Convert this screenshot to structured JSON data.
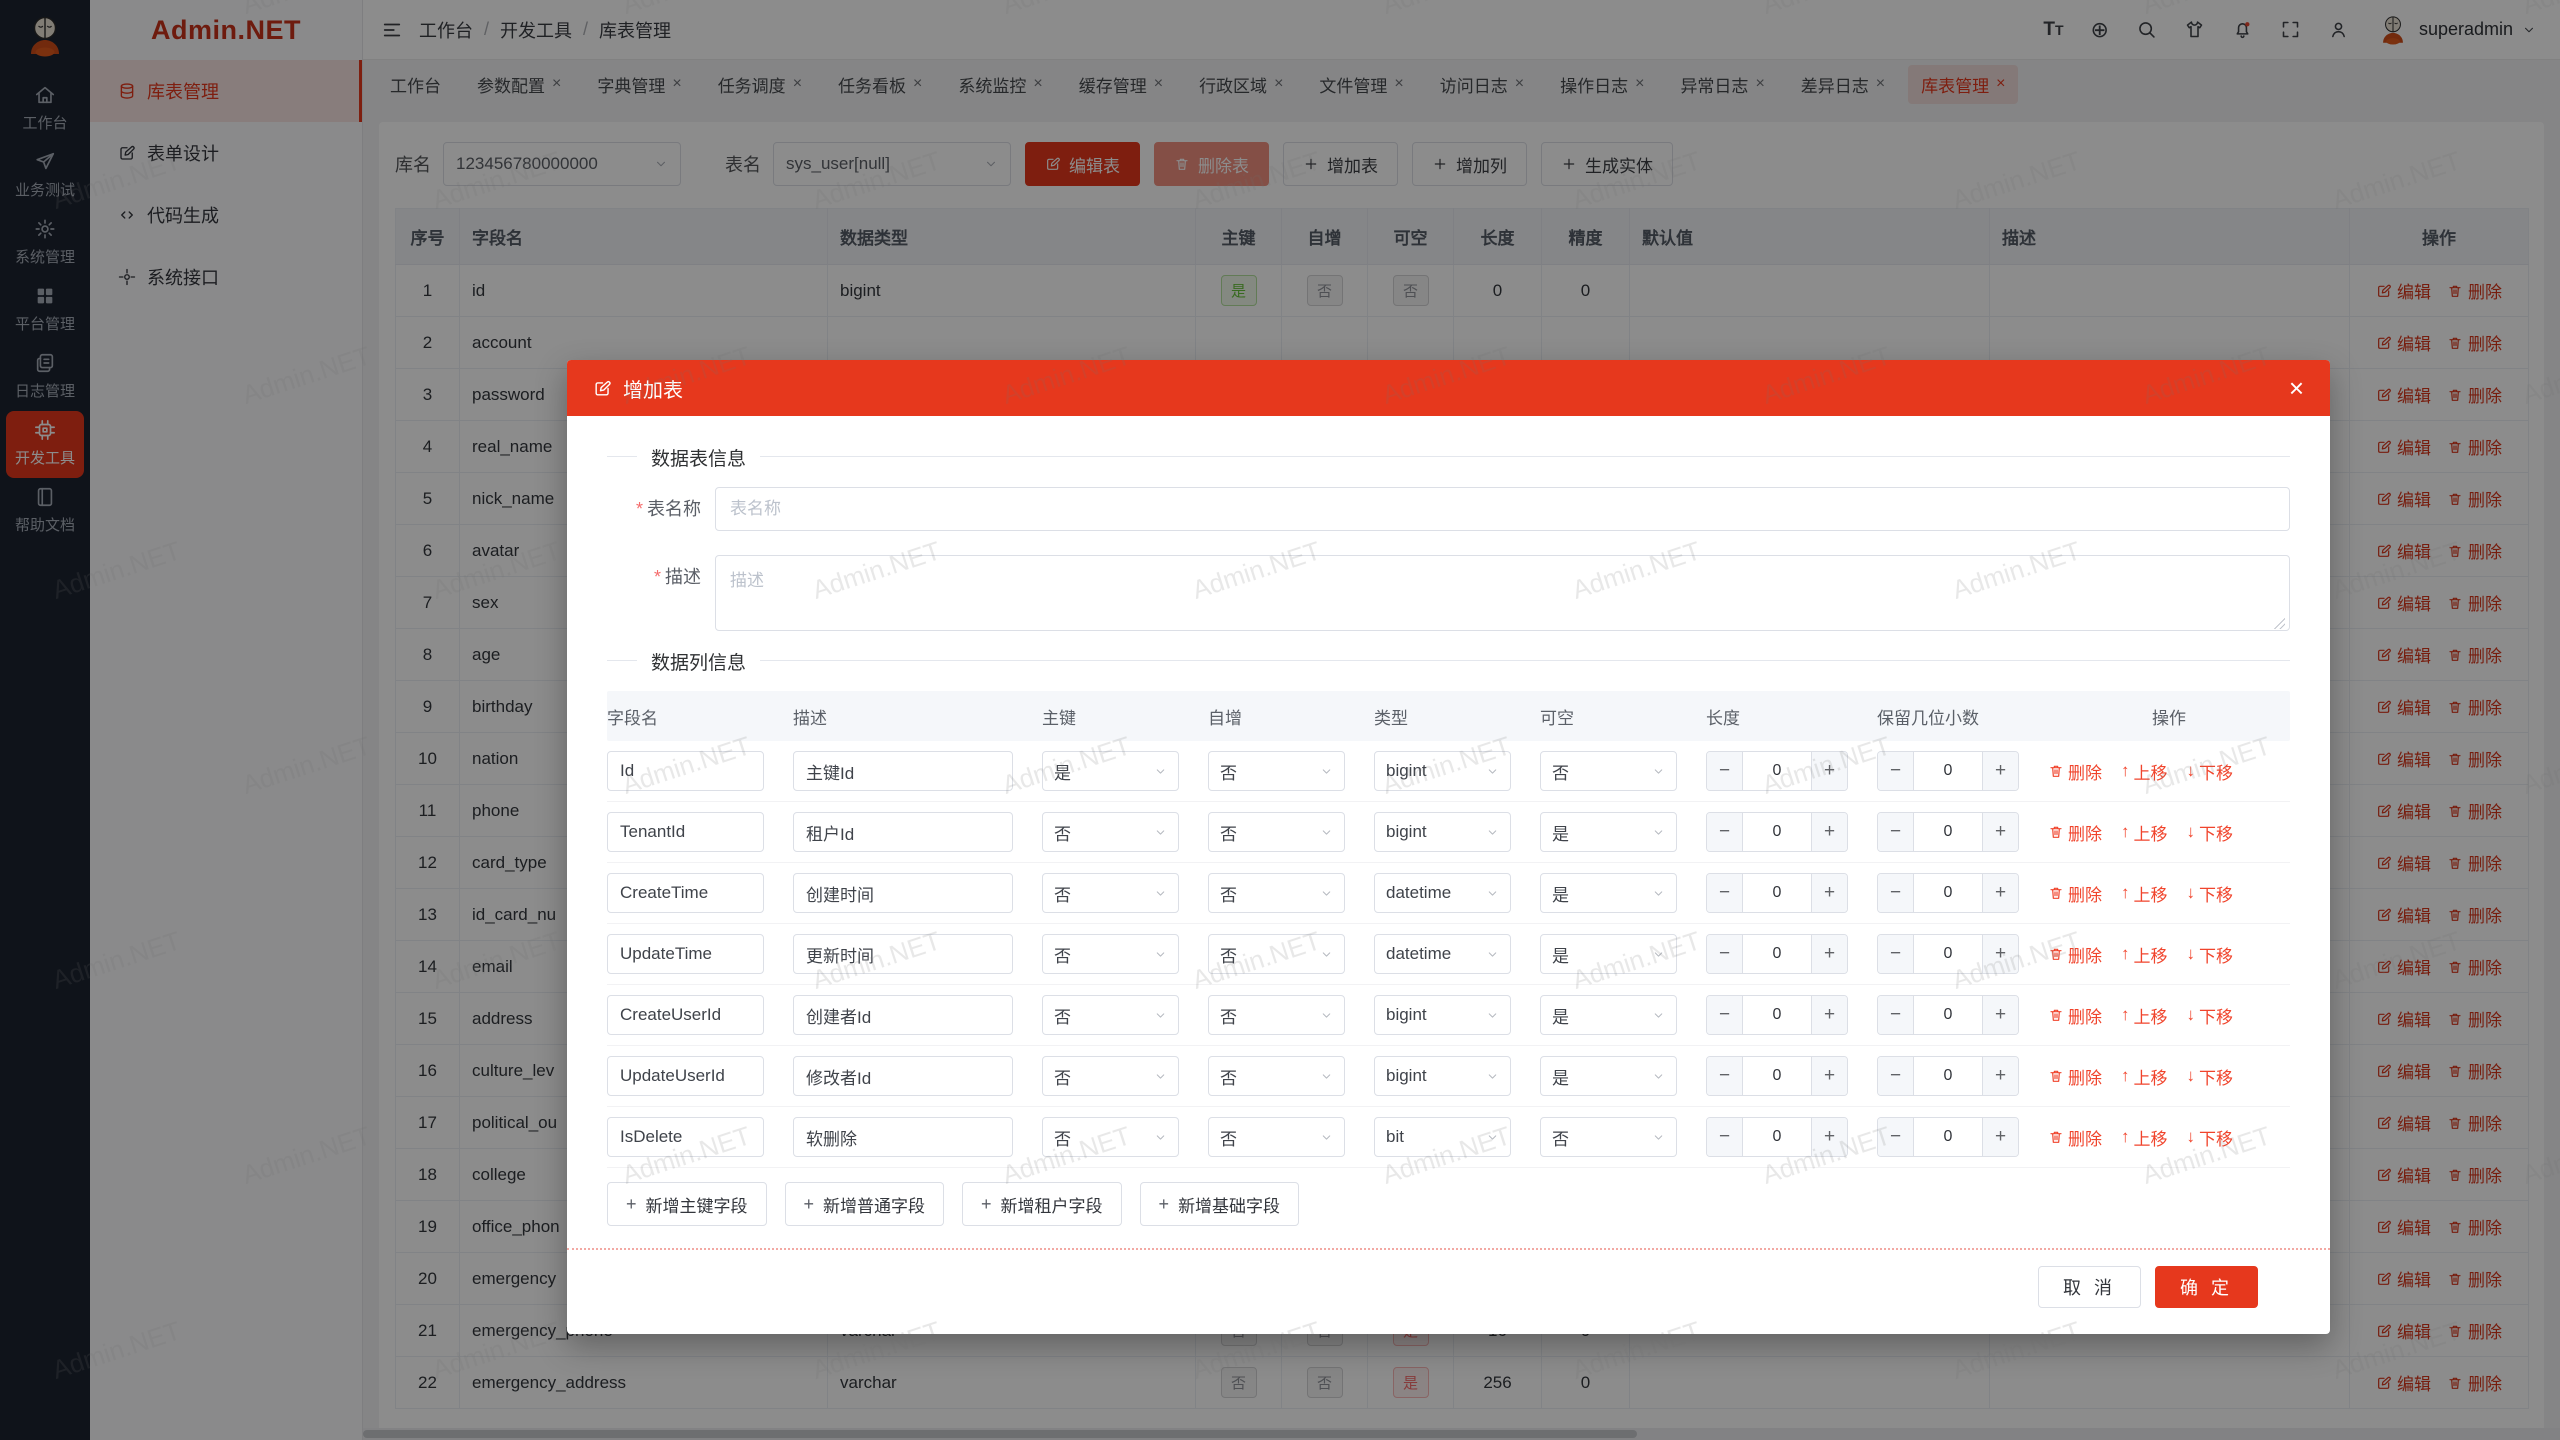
{
  "watermark": "Admin.NET",
  "brand": {
    "accent": "#e6381d"
  },
  "sidebar": {
    "logo": "Admin.NET",
    "rail_items": [
      {
        "label": "工作台",
        "icon": "home",
        "active": false
      },
      {
        "label": "业务测试",
        "icon": "send",
        "active": false
      },
      {
        "label": "系统管理",
        "icon": "gear",
        "active": false
      },
      {
        "label": "平台管理",
        "icon": "grid",
        "active": false
      },
      {
        "label": "日志管理",
        "icon": "logs",
        "active": false
      },
      {
        "label": "开发工具",
        "icon": "chip",
        "active": true
      },
      {
        "label": "帮助文档",
        "icon": "book",
        "active": false
      }
    ],
    "submenu_items": [
      {
        "label": "库表管理",
        "icon": "db",
        "active": true
      },
      {
        "label": "表单设计",
        "icon": "form",
        "active": false
      },
      {
        "label": "代码生成",
        "icon": "code",
        "active": false
      },
      {
        "label": "系统接口",
        "icon": "api",
        "active": false
      }
    ]
  },
  "header": {
    "breadcrumb": [
      "工作台",
      "开发工具",
      "库表管理"
    ],
    "icons": [
      "fontsize",
      "translate",
      "search",
      "shirt",
      "bell",
      "fullscreen",
      "user"
    ],
    "username": "superadmin"
  },
  "tabs": [
    {
      "label": "工作台",
      "closable": false,
      "active": false
    },
    {
      "label": "参数配置",
      "closable": true,
      "active": false
    },
    {
      "label": "字典管理",
      "closable": true,
      "active": false
    },
    {
      "label": "任务调度",
      "closable": true,
      "active": false
    },
    {
      "label": "任务看板",
      "closable": true,
      "active": false
    },
    {
      "label": "系统监控",
      "closable": true,
      "active": false
    },
    {
      "label": "缓存管理",
      "closable": true,
      "active": false
    },
    {
      "label": "行政区域",
      "closable": true,
      "active": false
    },
    {
      "label": "文件管理",
      "closable": true,
      "active": false
    },
    {
      "label": "访问日志",
      "closable": true,
      "active": false
    },
    {
      "label": "操作日志",
      "closable": true,
      "active": false
    },
    {
      "label": "异常日志",
      "closable": true,
      "active": false
    },
    {
      "label": "差异日志",
      "closable": true,
      "active": false
    },
    {
      "label": "库表管理",
      "closable": true,
      "active": true
    }
  ],
  "toolbar": {
    "db_label": "库名",
    "db_value": "123456780000000",
    "table_label": "表名",
    "table_value": "sys_user[null]",
    "buttons": [
      {
        "label": "编辑表",
        "icon": "edit",
        "variant": "danger"
      },
      {
        "label": "删除表",
        "icon": "trash",
        "variant": "danger-light"
      },
      {
        "label": "增加表",
        "icon": "plus",
        "variant": "default"
      },
      {
        "label": "增加列",
        "icon": "plus",
        "variant": "default"
      },
      {
        "label": "生成实体",
        "icon": "plus",
        "variant": "default"
      }
    ]
  },
  "table": {
    "headers": [
      "序号",
      "字段名",
      "数据类型",
      "主键",
      "自增",
      "可空",
      "长度",
      "精度",
      "默认值",
      "描述",
      "操作"
    ],
    "edit_label": "编辑",
    "delete_label": "删除",
    "rows": [
      {
        "seq": "1",
        "name": "id",
        "type": "bigint",
        "pk": "是",
        "inc": "否",
        "nullable": "否",
        "len": "0",
        "prec": "0",
        "def": "",
        "desc": ""
      },
      {
        "seq": "2",
        "name": "account",
        "type": "",
        "pk": "",
        "inc": "",
        "nullable": "",
        "len": "",
        "prec": "",
        "def": "",
        "desc": ""
      },
      {
        "seq": "3",
        "name": "password",
        "type": "",
        "pk": "",
        "inc": "",
        "nullable": "",
        "len": "",
        "prec": "",
        "def": "",
        "desc": ""
      },
      {
        "seq": "4",
        "name": "real_name",
        "type": "",
        "pk": "",
        "inc": "",
        "nullable": "",
        "len": "",
        "prec": "",
        "def": "",
        "desc": ""
      },
      {
        "seq": "5",
        "name": "nick_name",
        "type": "",
        "pk": "",
        "inc": "",
        "nullable": "",
        "len": "",
        "prec": "",
        "def": "",
        "desc": ""
      },
      {
        "seq": "6",
        "name": "avatar",
        "type": "",
        "pk": "",
        "inc": "",
        "nullable": "",
        "len": "",
        "prec": "",
        "def": "",
        "desc": ""
      },
      {
        "seq": "7",
        "name": "sex",
        "type": "",
        "pk": "",
        "inc": "",
        "nullable": "",
        "len": "",
        "prec": "",
        "def": "",
        "desc": ""
      },
      {
        "seq": "8",
        "name": "age",
        "type": "",
        "pk": "",
        "inc": "",
        "nullable": "",
        "len": "",
        "prec": "",
        "def": "",
        "desc": ""
      },
      {
        "seq": "9",
        "name": "birthday",
        "type": "",
        "pk": "",
        "inc": "",
        "nullable": "",
        "len": "",
        "prec": "",
        "def": "",
        "desc": ""
      },
      {
        "seq": "10",
        "name": "nation",
        "type": "",
        "pk": "",
        "inc": "",
        "nullable": "",
        "len": "",
        "prec": "",
        "def": "",
        "desc": ""
      },
      {
        "seq": "11",
        "name": "phone",
        "type": "",
        "pk": "",
        "inc": "",
        "nullable": "",
        "len": "",
        "prec": "",
        "def": "",
        "desc": ""
      },
      {
        "seq": "12",
        "name": "card_type",
        "type": "",
        "pk": "",
        "inc": "",
        "nullable": "",
        "len": "",
        "prec": "",
        "def": "",
        "desc": ""
      },
      {
        "seq": "13",
        "name": "id_card_nu",
        "type": "",
        "pk": "",
        "inc": "",
        "nullable": "",
        "len": "",
        "prec": "",
        "def": "",
        "desc": ""
      },
      {
        "seq": "14",
        "name": "email",
        "type": "",
        "pk": "",
        "inc": "",
        "nullable": "",
        "len": "",
        "prec": "",
        "def": "",
        "desc": ""
      },
      {
        "seq": "15",
        "name": "address",
        "type": "",
        "pk": "",
        "inc": "",
        "nullable": "",
        "len": "",
        "prec": "",
        "def": "",
        "desc": ""
      },
      {
        "seq": "16",
        "name": "culture_lev",
        "type": "",
        "pk": "",
        "inc": "",
        "nullable": "",
        "len": "",
        "prec": "",
        "def": "",
        "desc": ""
      },
      {
        "seq": "17",
        "name": "political_ou",
        "type": "",
        "pk": "",
        "inc": "",
        "nullable": "",
        "len": "",
        "prec": "",
        "def": "",
        "desc": ""
      },
      {
        "seq": "18",
        "name": "college",
        "type": "",
        "pk": "",
        "inc": "",
        "nullable": "",
        "len": "",
        "prec": "",
        "def": "",
        "desc": ""
      },
      {
        "seq": "19",
        "name": "office_phon",
        "type": "",
        "pk": "",
        "inc": "",
        "nullable": "",
        "len": "",
        "prec": "",
        "def": "",
        "desc": ""
      },
      {
        "seq": "20",
        "name": "emergency",
        "type": "",
        "pk": "",
        "inc": "",
        "nullable": "",
        "len": "",
        "prec": "",
        "def": "",
        "desc": ""
      },
      {
        "seq": "21",
        "name": "emergency_phone",
        "type": "varchar",
        "pk": "否",
        "inc": "否",
        "nullable": "是",
        "len": "16",
        "prec": "0",
        "def": "",
        "desc": ""
      },
      {
        "seq": "22",
        "name": "emergency_address",
        "type": "varchar",
        "pk": "否",
        "inc": "否",
        "nullable": "是",
        "len": "256",
        "prec": "0",
        "def": "",
        "desc": ""
      }
    ]
  },
  "modal": {
    "title": "增加表",
    "section_table": "数据表信息",
    "section_columns": "数据列信息",
    "form": {
      "name_label": "表名称",
      "name_placeholder": "表名称",
      "name_value": "",
      "desc_label": "描述",
      "desc_placeholder": "描述",
      "desc_value": ""
    },
    "grid": {
      "headers": [
        "字段名",
        "描述",
        "主键",
        "自增",
        "类型",
        "可空",
        "长度",
        "保留几位小数",
        "操作"
      ],
      "ops": {
        "delete": "删除",
        "up": "上移",
        "down": "下移"
      },
      "rows": [
        {
          "name": "Id",
          "desc": "主键Id",
          "pk": "是",
          "inc": "否",
          "type": "bigint",
          "nullable": "否",
          "len": "0",
          "dec": "0"
        },
        {
          "name": "TenantId",
          "desc": "租户Id",
          "pk": "否",
          "inc": "否",
          "type": "bigint",
          "nullable": "是",
          "len": "0",
          "dec": "0"
        },
        {
          "name": "CreateTime",
          "desc": "创建时间",
          "pk": "否",
          "inc": "否",
          "type": "datetime",
          "nullable": "是",
          "len": "0",
          "dec": "0"
        },
        {
          "name": "UpdateTime",
          "desc": "更新时间",
          "pk": "否",
          "inc": "否",
          "type": "datetime",
          "nullable": "是",
          "len": "0",
          "dec": "0"
        },
        {
          "name": "CreateUserId",
          "desc": "创建者Id",
          "pk": "否",
          "inc": "否",
          "type": "bigint",
          "nullable": "是",
          "len": "0",
          "dec": "0"
        },
        {
          "name": "UpdateUserId",
          "desc": "修改者Id",
          "pk": "否",
          "inc": "否",
          "type": "bigint",
          "nullable": "是",
          "len": "0",
          "dec": "0"
        },
        {
          "name": "IsDelete",
          "desc": "软删除",
          "pk": "否",
          "inc": "否",
          "type": "bit",
          "nullable": "否",
          "len": "0",
          "dec": "0"
        }
      ]
    },
    "add_buttons": [
      "新增主键字段",
      "新增普通字段",
      "新增租户字段",
      "新增基础字段"
    ],
    "footer": {
      "cancel": "取 消",
      "confirm": "确 定"
    }
  }
}
